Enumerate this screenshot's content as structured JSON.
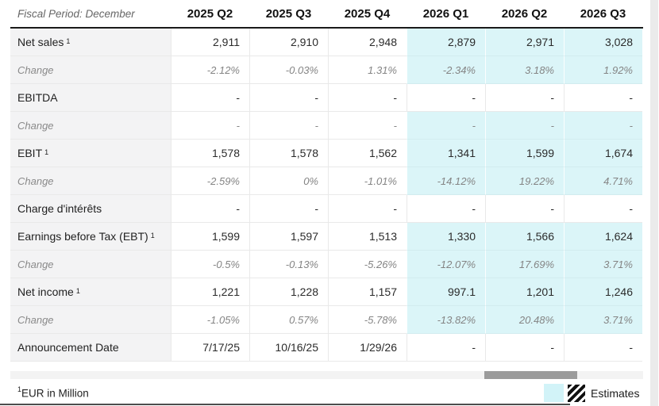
{
  "header": {
    "label": "Fiscal Period: December",
    "columns": [
      "2025 Q2",
      "2025 Q3",
      "2025 Q4",
      "2026 Q1",
      "2026 Q2",
      "2026 Q3"
    ]
  },
  "rows": [
    {
      "label": "Net sales",
      "sup": "1",
      "type": "metric",
      "estimate": true,
      "values": [
        "2,911",
        "2,910",
        "2,948",
        "2,879",
        "2,971",
        "3,028"
      ]
    },
    {
      "label": "Change",
      "type": "change",
      "estimate": true,
      "values": [
        "-2.12%",
        "-0.03%",
        "1.31%",
        "-2.34%",
        "3.18%",
        "1.92%"
      ]
    },
    {
      "label": "EBITDA",
      "type": "metric",
      "estimate": false,
      "values": [
        "-",
        "-",
        "-",
        "-",
        "-",
        "-"
      ]
    },
    {
      "label": "Change",
      "type": "change",
      "estimate": true,
      "values": [
        "-",
        "-",
        "-",
        "-",
        "-",
        "-"
      ]
    },
    {
      "label": "EBIT",
      "sup": "1",
      "type": "metric",
      "estimate": true,
      "values": [
        "1,578",
        "1,578",
        "1,562",
        "1,341",
        "1,599",
        "1,674"
      ]
    },
    {
      "label": "Change",
      "type": "change",
      "estimate": true,
      "values": [
        "-2.59%",
        "0%",
        "-1.01%",
        "-14.12%",
        "19.22%",
        "4.71%"
      ]
    },
    {
      "label": "Charge d'intérêts",
      "type": "metric",
      "estimate": false,
      "values": [
        "-",
        "-",
        "-",
        "-",
        "-",
        "-"
      ]
    },
    {
      "label": "Earnings before Tax (EBT)",
      "sup": "1",
      "type": "metric",
      "estimate": true,
      "values": [
        "1,599",
        "1,597",
        "1,513",
        "1,330",
        "1,566",
        "1,624"
      ]
    },
    {
      "label": "Change",
      "type": "change",
      "estimate": true,
      "values": [
        "-0.5%",
        "-0.13%",
        "-5.26%",
        "-12.07%",
        "17.69%",
        "3.71%"
      ]
    },
    {
      "label": "Net income",
      "sup": "1",
      "type": "metric",
      "estimate": true,
      "values": [
        "1,221",
        "1,228",
        "1,157",
        "997.1",
        "1,201",
        "1,246"
      ]
    },
    {
      "label": "Change",
      "type": "change",
      "estimate": true,
      "values": [
        "-1.05%",
        "0.57%",
        "-5.78%",
        "-13.82%",
        "20.48%",
        "3.71%"
      ]
    },
    {
      "label": "Announcement Date",
      "type": "metric",
      "estimate": false,
      "values": [
        "7/17/25",
        "10/16/25",
        "1/29/26",
        "-",
        "-",
        "-"
      ]
    }
  ],
  "footer": {
    "footnote_sup": "1",
    "footnote_text": "EUR in Million",
    "legend_label": "Estimates"
  },
  "colors": {
    "estimate_bg": "#dbf5f8",
    "legend_swatch": "#d2f3f8",
    "label_col_bg": "#f3f3f4",
    "border": "#e9e9e9",
    "header_border": "#1a1a1a",
    "scrollbar_thumb": "#9b9b9b"
  }
}
